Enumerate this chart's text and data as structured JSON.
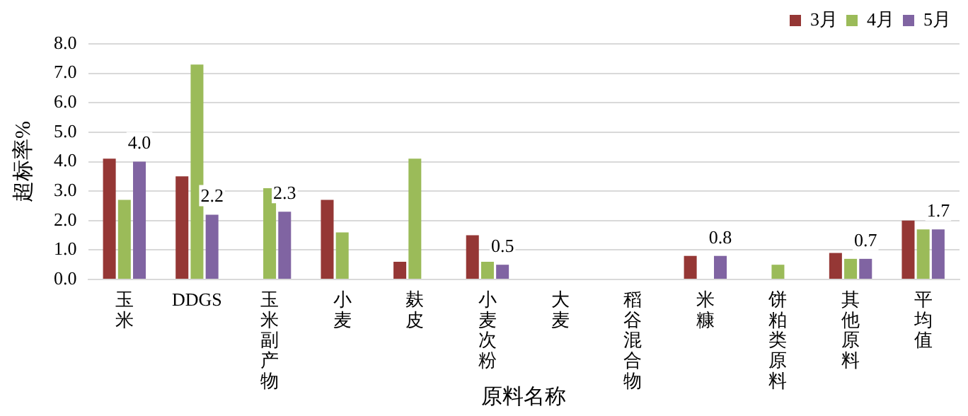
{
  "chart_data": {
    "type": "bar",
    "xlabel": "原料名称",
    "ylabel": "超标率%",
    "categories": [
      "玉米",
      "DDGS",
      "玉米副产物",
      "小麦",
      "麸皮",
      "小麦次粉",
      "大麦",
      "稻谷混合物",
      "米糠",
      "饼粕类原料",
      "其他原料",
      "平均值"
    ],
    "series": [
      {
        "name": "3月",
        "color": "#953735",
        "values": [
          4.1,
          3.5,
          null,
          2.7,
          0.6,
          1.5,
          null,
          null,
          0.8,
          null,
          0.9,
          2.0
        ]
      },
      {
        "name": "4月",
        "color": "#9bbb59",
        "values": [
          2.7,
          7.3,
          3.1,
          1.6,
          4.1,
          0.6,
          null,
          null,
          null,
          0.5,
          0.7,
          1.7
        ]
      },
      {
        "name": "5月",
        "color": "#8064a2",
        "values": [
          4.0,
          2.2,
          2.3,
          null,
          null,
          0.5,
          null,
          null,
          0.8,
          null,
          0.7,
          1.7
        ],
        "value_labels": [
          "4.0",
          "2.2",
          "2.3",
          null,
          null,
          "0.5",
          null,
          null,
          "0.8",
          null,
          "0.7",
          "1.7"
        ]
      }
    ],
    "ylim": [
      0,
      8
    ],
    "yticks": [
      {
        "value": 0,
        "label": "0.0"
      },
      {
        "value": 1,
        "label": "1.0"
      },
      {
        "value": 2,
        "label": "2.0"
      },
      {
        "value": 3,
        "label": "3.0"
      },
      {
        "value": 4,
        "label": "4.0"
      },
      {
        "value": 5,
        "label": "5.0"
      },
      {
        "value": 6,
        "label": "6.0"
      },
      {
        "value": 7,
        "label": "7.0"
      },
      {
        "value": 8,
        "label": "8.0"
      }
    ],
    "grid": "y",
    "legend": "top right"
  }
}
